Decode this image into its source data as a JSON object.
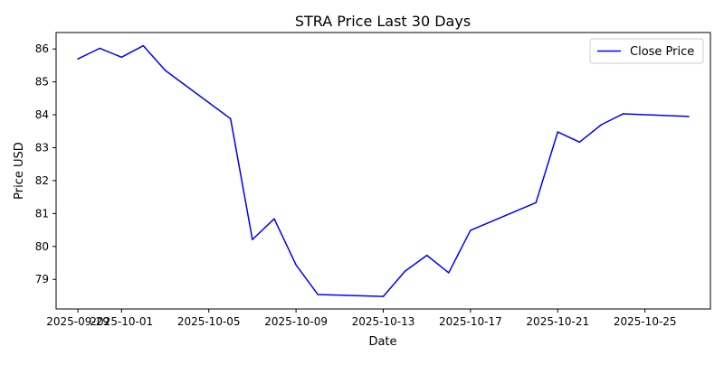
{
  "chart_data": {
    "type": "line",
    "title": "STRA Price Last 30 Days",
    "xlabel": "Date",
    "ylabel": "Price USD",
    "x_type": "date",
    "xlim": [
      "2025-09-28",
      "2025-10-28"
    ],
    "ylim": [
      78.1,
      86.5
    ],
    "grid": false,
    "legend_position": "top-right",
    "x_ticks": [
      "2025-09-29",
      "2025-10-01",
      "2025-10-05",
      "2025-10-09",
      "2025-10-13",
      "2025-10-17",
      "2025-10-21",
      "2025-10-25"
    ],
    "y_ticks": [
      79,
      80,
      81,
      82,
      83,
      84,
      85,
      86
    ],
    "series": [
      {
        "name": "Close Price",
        "color": "#0000ff",
        "x": [
          "2025-09-29",
          "2025-09-30",
          "2025-10-01",
          "2025-10-02",
          "2025-10-03",
          "2025-10-06",
          "2025-10-07",
          "2025-10-08",
          "2025-10-09",
          "2025-10-10",
          "2025-10-13",
          "2025-10-14",
          "2025-10-15",
          "2025-10-16",
          "2025-10-17",
          "2025-10-20",
          "2025-10-21",
          "2025-10-22",
          "2025-10-23",
          "2025-10-24",
          "2025-10-27"
        ],
        "y": [
          85.7,
          86.02,
          85.75,
          86.1,
          85.35,
          83.88,
          80.21,
          80.84,
          79.44,
          78.54,
          78.48,
          79.25,
          79.73,
          79.2,
          80.49,
          81.33,
          83.48,
          83.17,
          83.7,
          84.03,
          83.95
        ]
      }
    ]
  }
}
